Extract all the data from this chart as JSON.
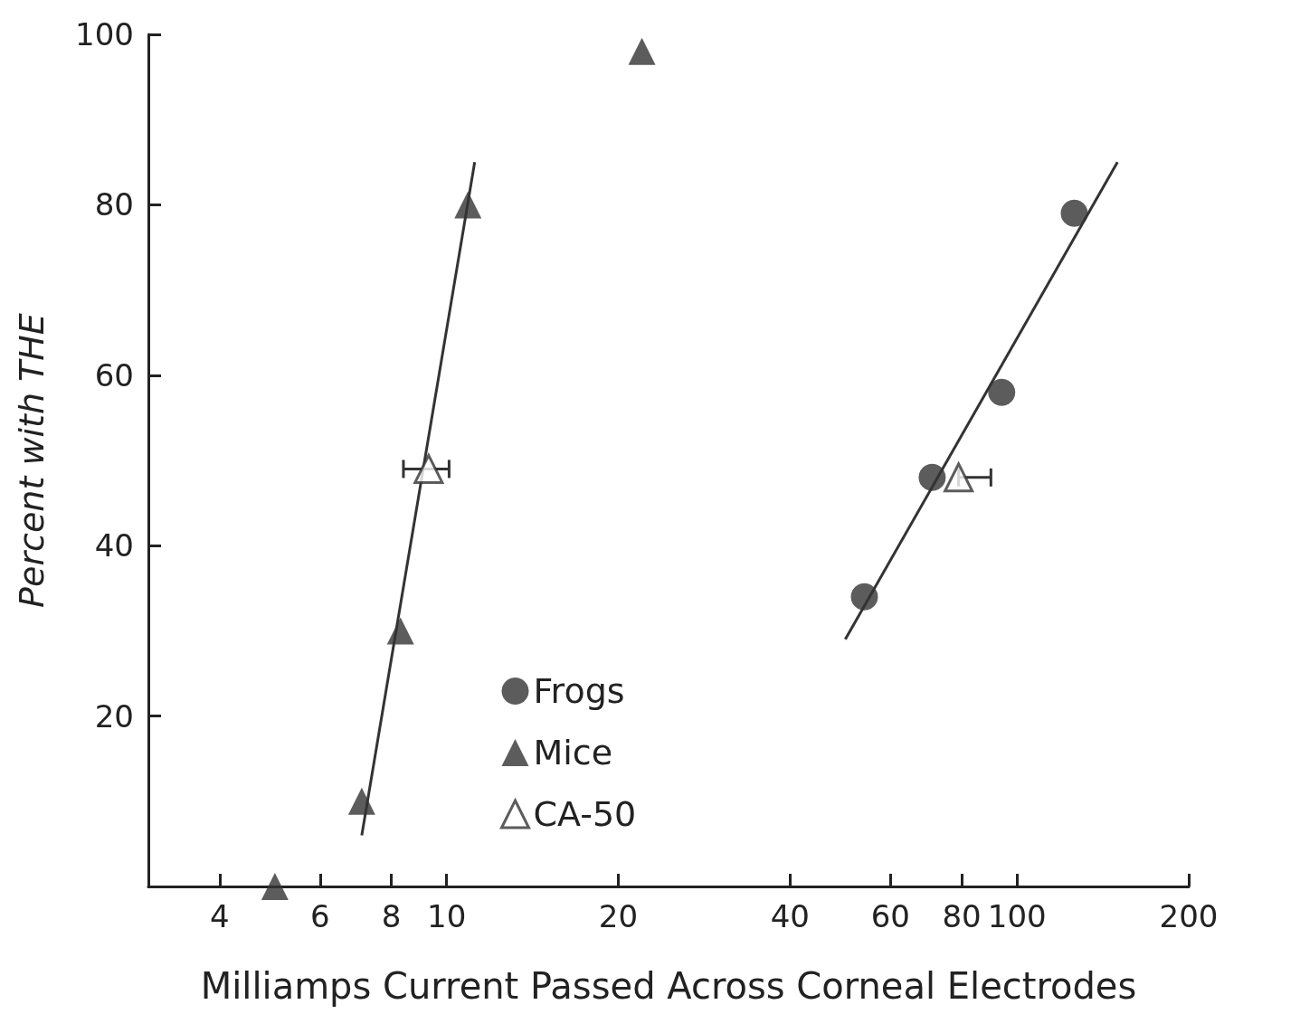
{
  "chart_data": {
    "type": "scatter",
    "xlabel": "Milliamps Current Passed Across Corneal Electrodes",
    "ylabel": "Percent with THE",
    "log": "x",
    "xlim": [
      3,
      200
    ],
    "xticks": [
      4,
      6,
      8,
      10,
      20,
      40,
      60,
      80,
      100,
      200
    ],
    "ylim": [
      0,
      100
    ],
    "yticks": [
      20,
      40,
      60,
      80,
      100
    ],
    "grid": false,
    "legend": "bottom",
    "series": [
      {
        "name": "Frogs",
        "marker": "circle",
        "color": "#333333",
        "x": [
          54,
          71,
          94,
          126
        ],
        "values": [
          34,
          48,
          58,
          79
        ]
      },
      {
        "name": "Mice",
        "marker": "triangle",
        "color": "#333333",
        "x": [
          5,
          7.1,
          8.3,
          10.9,
          22
        ],
        "values": [
          0,
          10,
          30,
          80,
          98
        ]
      },
      {
        "name": "CA-50",
        "marker": "triangle",
        "color": "#333333",
        "x": [
          9.3,
          79
        ],
        "values": [
          49,
          48
        ],
        "xerrors": [
          [
            8.4,
            10.1
          ],
          [
            79,
            90
          ]
        ]
      },
      {
        "type": "line",
        "marker": "none",
        "color": "#333333",
        "x": [
          7.1,
          11.2
        ],
        "values": [
          6,
          85
        ]
      },
      {
        "type": "line",
        "marker": "none",
        "color": "#333333",
        "x": [
          50,
          150
        ],
        "values": [
          29,
          85
        ]
      }
    ]
  }
}
